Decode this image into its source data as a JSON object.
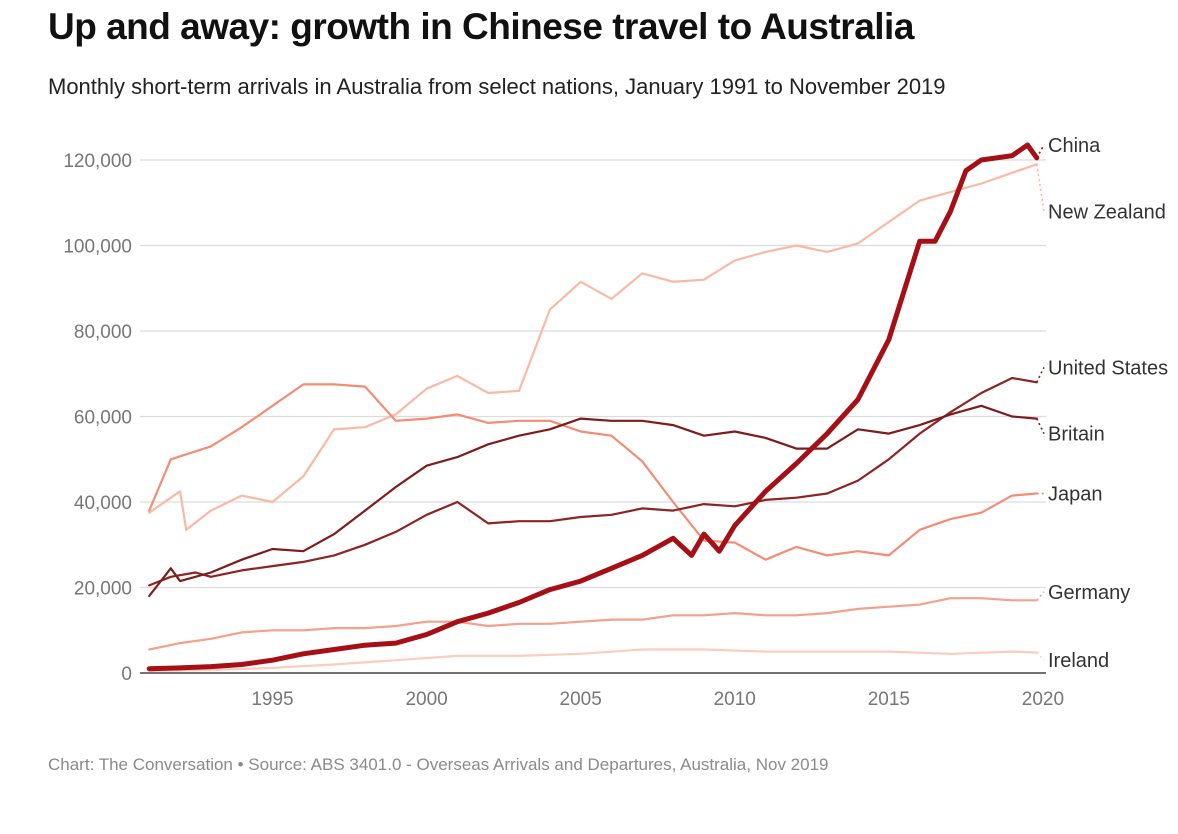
{
  "chart_data": {
    "type": "line",
    "title": "Up and away: growth in Chinese travel to Australia",
    "subtitle": "Monthly short-term arrivals in Australia from select nations, January 1991 to November 2019",
    "source": "Chart: The Conversation • Source: ABS 3401.0 - Overseas Arrivals and Departures, Australia, Nov 2019",
    "xlabel": "",
    "ylabel": "",
    "xlim": [
      1990.7,
      2020.1
    ],
    "ylim": [
      0,
      120000
    ],
    "x_ticks": [
      "1995",
      "2000",
      "2005",
      "2010",
      "2015",
      "2020"
    ],
    "y_ticks": [
      "0",
      "20,000",
      "40,000",
      "60,000",
      "80,000",
      "100,000",
      "120,000"
    ],
    "grid": true,
    "series": [
      {
        "name": "New Zealand",
        "color": "#f9b9a3",
        "end_label": "New Zealand",
        "end_value": 108000,
        "x": [
          1991,
          1992,
          1992.2,
          1993,
          1994,
          1995,
          1996,
          1997,
          1998,
          1999,
          2000,
          2001,
          2002,
          2003,
          2004,
          2005,
          2006,
          2007,
          2008,
          2009,
          2010,
          2011,
          2012,
          2013,
          2014,
          2015,
          2016,
          2017,
          2018,
          2019,
          2019.8
        ],
        "values": [
          37500,
          42500,
          33500,
          38000,
          41500,
          40000,
          46000,
          57000,
          57500,
          60500,
          66500,
          69500,
          65500,
          66000,
          85000,
          91500,
          87500,
          93500,
          91500,
          92000,
          96500,
          98500,
          100000,
          98500,
          100500,
          105500,
          110500,
          112500,
          114500,
          117000,
          119000
        ]
      },
      {
        "name": "Japan",
        "color": "#f48c74",
        "end_label": "Japan",
        "end_value": 42000,
        "x": [
          1991,
          1991.7,
          1993,
          1994,
          1995,
          1996,
          1997,
          1998,
          1999,
          2000,
          2001,
          2002,
          2003,
          2004,
          2005,
          2006,
          2007,
          2008,
          2009,
          2010,
          2011,
          2012,
          2013,
          2014,
          2015,
          2016,
          2017,
          2018,
          2019,
          2019.8
        ],
        "values": [
          38000,
          50000,
          53000,
          57500,
          62500,
          67500,
          67500,
          67000,
          59000,
          59500,
          60500,
          58500,
          59000,
          59000,
          56500,
          55500,
          49500,
          40000,
          31000,
          30500,
          26500,
          29500,
          27500,
          28500,
          27500,
          33500,
          36000,
          37500,
          41500,
          42000
        ]
      },
      {
        "name": "United States",
        "color": "#8e2323",
        "end_label": "United States",
        "end_value": 71500,
        "x": [
          1991,
          1991.7,
          1992.5,
          1993,
          1994,
          1995,
          1996,
          1997,
          1998,
          1999,
          2000,
          2001,
          2002,
          2003,
          2004,
          2005,
          2006,
          2007,
          2008,
          2009,
          2010,
          2011,
          2012,
          2013,
          2014,
          2015,
          2016,
          2017,
          2018,
          2019,
          2019.8
        ],
        "values": [
          20500,
          22500,
          23500,
          22500,
          24000,
          25000,
          26000,
          27500,
          30000,
          33000,
          37000,
          40000,
          35000,
          35500,
          35500,
          36500,
          37000,
          38500,
          38000,
          39500,
          39000,
          40500,
          41000,
          42000,
          45000,
          50000,
          56000,
          61000,
          65500,
          69000,
          68000
        ]
      },
      {
        "name": "Britain",
        "color": "#7e1c1c",
        "end_label": "Britain",
        "end_value": 56000,
        "x": [
          1991,
          1991.7,
          1992,
          1993,
          1994,
          1995,
          1996,
          1997,
          1998,
          1999,
          2000,
          2001,
          2002,
          2003,
          2004,
          2005,
          2006,
          2007,
          2008,
          2009,
          2010,
          2011,
          2012,
          2013,
          2014,
          2015,
          2016,
          2017,
          2018,
          2019,
          2019.8
        ],
        "values": [
          18000,
          24500,
          21500,
          23500,
          26500,
          29000,
          28500,
          32500,
          38000,
          43500,
          48500,
          50500,
          53500,
          55500,
          57000,
          59500,
          59000,
          59000,
          58000,
          55500,
          56500,
          55000,
          52500,
          52500,
          57000,
          56000,
          58000,
          60500,
          62500,
          60000,
          59500
        ]
      },
      {
        "name": "Germany",
        "color": "#f4a08a",
        "end_label": "Germany",
        "end_value": 19000,
        "x": [
          1991,
          1992,
          1993,
          1994,
          1995,
          1996,
          1997,
          1998,
          1999,
          2000,
          2001,
          2002,
          2003,
          2004,
          2005,
          2006,
          2007,
          2008,
          2009,
          2010,
          2011,
          2012,
          2013,
          2014,
          2015,
          2016,
          2017,
          2018,
          2019,
          2019.8
        ],
        "values": [
          5500,
          7000,
          8000,
          9500,
          10000,
          10000,
          10500,
          10500,
          11000,
          12000,
          12000,
          11000,
          11500,
          11500,
          12000,
          12500,
          12500,
          13500,
          13500,
          14000,
          13500,
          13500,
          14000,
          15000,
          15500,
          16000,
          17500,
          17500,
          17000,
          17000
        ]
      },
      {
        "name": "Ireland",
        "color": "#fbcdbd",
        "end_label": "Ireland",
        "end_value": 3000,
        "x": [
          1991,
          1993,
          1995,
          1997,
          1999,
          2001,
          2003,
          2005,
          2007,
          2009,
          2011,
          2013,
          2015,
          2017,
          2019,
          2019.8
        ],
        "values": [
          500,
          700,
          1200,
          2000,
          3000,
          4000,
          4000,
          4500,
          5500,
          5500,
          5000,
          5000,
          5000,
          4500,
          5000,
          4800
        ]
      },
      {
        "name": "China",
        "color": "#a50f15",
        "highlight": true,
        "end_label": "China",
        "end_value": 123500,
        "x": [
          1991,
          1992,
          1993,
          1994,
          1995,
          1996,
          1997,
          1998,
          1999,
          2000,
          2001,
          2002,
          2003,
          2004,
          2005,
          2006,
          2007,
          2008,
          2008.6,
          2009,
          2009.5,
          2010,
          2011,
          2012,
          2013,
          2014,
          2015,
          2016,
          2016.5,
          2017,
          2017.5,
          2018,
          2019,
          2019.5,
          2019.8
        ],
        "values": [
          1000,
          1200,
          1500,
          2000,
          3000,
          4500,
          5500,
          6500,
          7000,
          9000,
          12000,
          14000,
          16500,
          19500,
          21500,
          24500,
          27500,
          31500,
          27500,
          32500,
          28500,
          34500,
          42500,
          49000,
          56000,
          64000,
          78000,
          101000,
          101000,
          108000,
          117500,
          120000,
          121000,
          123500,
          120500
        ]
      }
    ]
  }
}
